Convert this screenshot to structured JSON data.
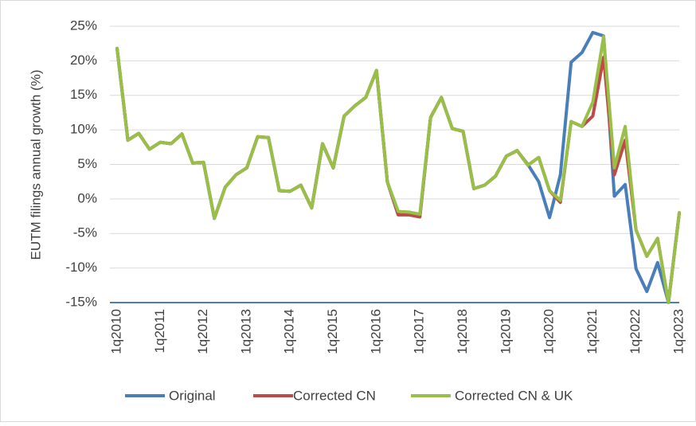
{
  "chart_data": {
    "type": "line",
    "y_label": "EUTM filings annual growth (%)",
    "categories": [
      "1q2010",
      null,
      null,
      null,
      "1q2011",
      null,
      null,
      null,
      "1q2012",
      null,
      null,
      null,
      "1q2013",
      null,
      null,
      null,
      "1q2014",
      null,
      null,
      null,
      "1q2015",
      null,
      null,
      null,
      "1q2016",
      null,
      null,
      null,
      "1q2017",
      null,
      null,
      null,
      "1q2018",
      null,
      null,
      null,
      "1q2019",
      null,
      null,
      null,
      "1q2020",
      null,
      null,
      null,
      "1q2021",
      null,
      null,
      null,
      "1q2022",
      null,
      null,
      null,
      "1q2023"
    ],
    "series": [
      {
        "name": "Original",
        "color": "#4a7ebb",
        "values": [
          21.8,
          8.5,
          9.5,
          7.2,
          8.2,
          8.0,
          9.4,
          5.2,
          5.3,
          -2.8,
          1.7,
          3.5,
          4.5,
          9.0,
          8.9,
          1.2,
          1.1,
          2.0,
          -1.3,
          8.0,
          4.5,
          12.0,
          13.5,
          14.7,
          18.6,
          2.5,
          -2.3,
          -2.3,
          -2.6,
          11.8,
          14.7,
          10.2,
          9.8,
          1.5,
          2.0,
          3.3,
          6.2,
          7.0,
          5.0,
          2.5,
          -2.7,
          3.5,
          19.8,
          21.2,
          24.1,
          23.6,
          0.4,
          2.1,
          -10.1,
          -13.4,
          -9.2,
          -15.0,
          -2.0
        ]
      },
      {
        "name": "Corrected CN",
        "color": "#be4b48",
        "values": [
          21.8,
          8.5,
          9.5,
          7.2,
          8.2,
          8.0,
          9.4,
          5.2,
          5.3,
          -2.8,
          1.7,
          3.5,
          4.5,
          9.0,
          8.9,
          1.2,
          1.1,
          2.0,
          -1.3,
          8.0,
          4.5,
          12.0,
          13.5,
          14.7,
          18.6,
          2.5,
          -2.3,
          -2.3,
          -2.6,
          11.8,
          14.7,
          10.2,
          9.8,
          1.5,
          2.0,
          3.3,
          6.2,
          7.0,
          4.9,
          6.0,
          1.2,
          -0.5,
          11.2,
          10.5,
          12.0,
          20.5,
          3.5,
          8.5,
          -4.5,
          -8.3,
          -5.7,
          -15.0,
          -2.0
        ]
      },
      {
        "name": "Corrected CN & UK",
        "color": "#98c048",
        "values": [
          21.8,
          8.5,
          9.5,
          7.2,
          8.2,
          8.0,
          9.4,
          5.2,
          5.3,
          -2.8,
          1.7,
          3.5,
          4.5,
          9.0,
          8.9,
          1.2,
          1.1,
          2.0,
          -1.3,
          8.0,
          4.5,
          12.0,
          13.5,
          14.7,
          18.6,
          2.5,
          -1.8,
          -1.9,
          -2.2,
          11.8,
          14.7,
          10.2,
          9.8,
          1.5,
          2.0,
          3.3,
          6.2,
          7.0,
          4.9,
          6.0,
          1.2,
          -0.2,
          11.2,
          10.5,
          14.0,
          23.5,
          4.5,
          10.5,
          -4.5,
          -8.3,
          -5.7,
          -15.0,
          -2.0
        ]
      }
    ],
    "ylim": [
      -15,
      25
    ],
    "yticks": [
      {
        "value": -15,
        "label": "-15%"
      },
      {
        "value": -10,
        "label": "-10%"
      },
      {
        "value": -5,
        "label": "-5%"
      },
      {
        "value": 0,
        "label": "0%"
      },
      {
        "value": 5,
        "label": "5%"
      },
      {
        "value": 10,
        "label": "10%"
      },
      {
        "value": 15,
        "label": "15%"
      },
      {
        "value": 20,
        "label": "20%"
      },
      {
        "value": 25,
        "label": "25%"
      }
    ],
    "grid": true,
    "legend": "bottom"
  }
}
